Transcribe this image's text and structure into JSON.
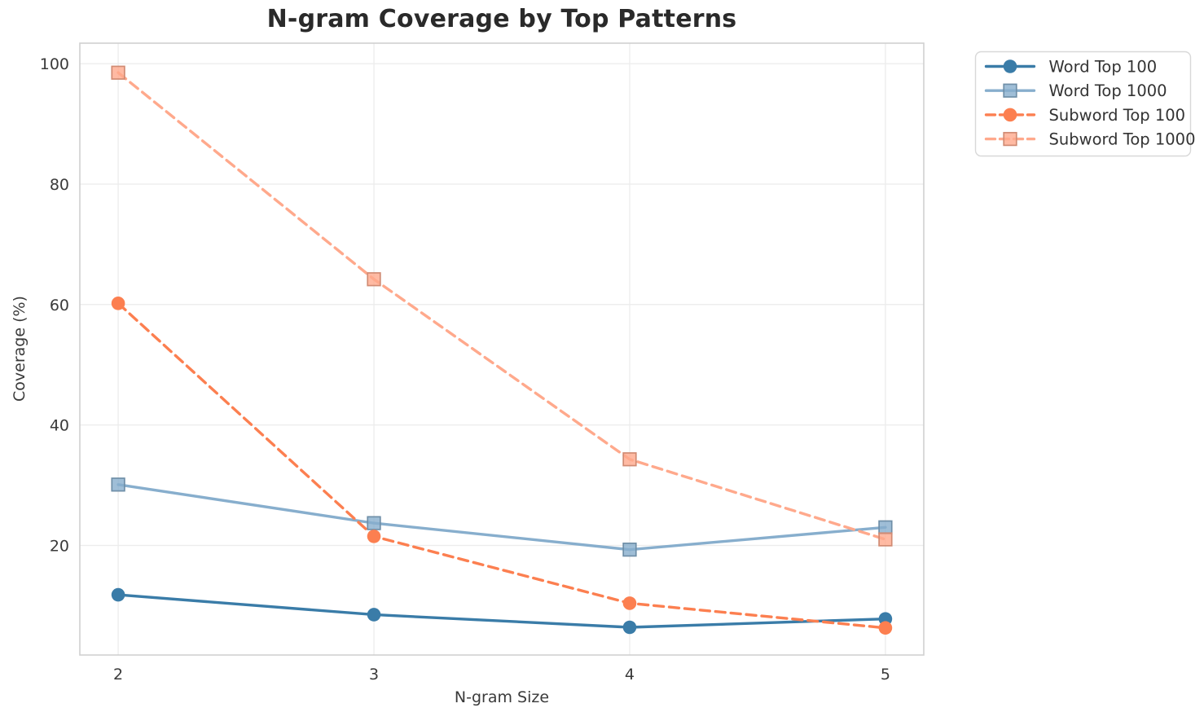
{
  "chart_data": {
    "type": "line",
    "title": "N-gram Coverage by Top Patterns",
    "xlabel": "N-gram Size",
    "ylabel": "Coverage (%)",
    "x": [
      2,
      3,
      4,
      5
    ],
    "xticks": [
      "2",
      "3",
      "4",
      "5"
    ],
    "yticks": [
      20,
      40,
      60,
      80,
      100
    ],
    "xlim": [
      1.85,
      5.15
    ],
    "ylim": [
      1.8,
      103.4
    ],
    "grid": true,
    "legend_position": "outside-top-right",
    "series": [
      {
        "name": "Word Top 100",
        "values": [
          11.8,
          8.5,
          6.4,
          7.8
        ],
        "color": "#3a7ca8",
        "line_style": "solid",
        "marker": "circle"
      },
      {
        "name": "Word Top 1000",
        "values": [
          30.1,
          23.7,
          19.3,
          23.0
        ],
        "color": "#87aecd",
        "line_style": "solid",
        "marker": "square"
      },
      {
        "name": "Subword Top 100",
        "values": [
          60.2,
          21.5,
          10.4,
          6.3
        ],
        "color": "#fc7f50",
        "line_style": "dashed",
        "marker": "circle"
      },
      {
        "name": "Subword Top 1000",
        "values": [
          98.5,
          64.2,
          34.3,
          21.0
        ],
        "color": "#ffa98c",
        "line_style": "dashed",
        "marker": "square"
      }
    ],
    "styles": {
      "grid_color": "#ececec",
      "spine_color": "#d0d0d0",
      "tick_color": "#3a3a3a",
      "title_color": "#2a2a2a",
      "label_color": "#3a3a3a",
      "legend_border": "#d8d8d8",
      "legend_bg": "#ffffff",
      "legend_text": "#333333"
    }
  }
}
